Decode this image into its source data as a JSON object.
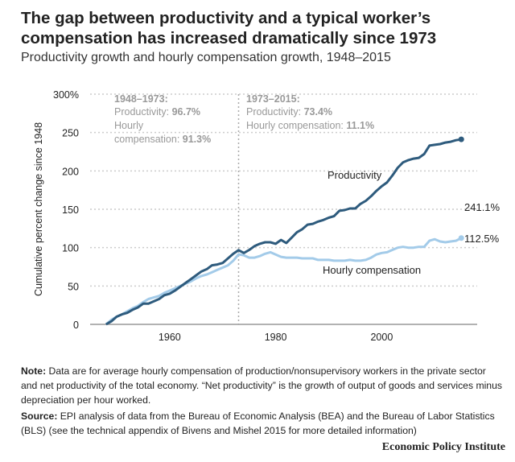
{
  "title": "The gap between productivity and a typical worker’s compensation has increased dramatically since 1973",
  "subtitle": "Productivity growth and hourly compensation growth, 1948–2015",
  "annotations": {
    "period1": {
      "heading": "1948–1973:",
      "prod_label": "Productivity: ",
      "prod_value": "96.7%",
      "comp_label1": "Hourly",
      "comp_label2": "compensation: ",
      "comp_value": "91.3%"
    },
    "period2": {
      "heading": "1973–2015:",
      "prod_label": "Productivity: ",
      "prod_value": "73.4%",
      "comp_label": "Hourly compensation: ",
      "comp_value": "11.1%"
    },
    "end_prod": "241.1%",
    "end_comp": "112.5%"
  },
  "note": {
    "label": "Note:",
    "text": " Data are for average hourly compensation of production/nonsupervisory workers in the private sector and net productivity of the total economy. “Net productivity” is the growth of output of goods and services minus depreciation per hour worked."
  },
  "source": {
    "label": "Source:",
    "text": " EPI analysis of data from the Bureau of Economic Analysis (BEA) and the Bureau of Labor Statistics (BLS) (see the technical appendix of Bivens and Mishel 2015 for more detailed information)"
  },
  "brand": "Economic Policy Institute",
  "colors": {
    "productivity": "#2e5b7d",
    "compensation": "#a3cbe9",
    "annotation": "#999999"
  },
  "chart_data": {
    "type": "line",
    "ylabel": "Cumulative percent change since 1948",
    "ylim": [
      0,
      300
    ],
    "xlim": [
      1945,
      2018
    ],
    "yticks": [
      "0",
      "50",
      "100",
      "150",
      "200",
      "250",
      "300%"
    ],
    "xticks": [
      "1960",
      "1980",
      "2000"
    ],
    "grid": true,
    "reference_line_x": 1973,
    "x": [
      1948,
      1949,
      1950,
      1951,
      1952,
      1953,
      1954,
      1955,
      1956,
      1957,
      1958,
      1959,
      1960,
      1961,
      1962,
      1963,
      1964,
      1965,
      1966,
      1967,
      1968,
      1969,
      1970,
      1971,
      1972,
      1973,
      1974,
      1975,
      1976,
      1977,
      1978,
      1979,
      1980,
      1981,
      1982,
      1983,
      1984,
      1985,
      1986,
      1987,
      1988,
      1989,
      1990,
      1991,
      1992,
      1993,
      1994,
      1995,
      1996,
      1997,
      1998,
      1999,
      2000,
      2001,
      2002,
      2003,
      2004,
      2005,
      2006,
      2007,
      2008,
      2009,
      2010,
      2011,
      2012,
      2013,
      2014,
      2015
    ],
    "series": [
      {
        "name": "Productivity",
        "values": [
          0,
          4,
          10,
          13,
          15,
          19,
          22,
          27,
          27,
          30,
          33,
          38,
          40,
          44,
          49,
          54,
          59,
          64,
          69,
          72,
          77,
          78,
          80,
          86,
          92,
          96.7,
          93,
          97,
          102,
          105,
          107,
          107,
          105,
          110,
          106,
          113,
          120,
          124,
          130,
          131,
          134,
          136,
          139,
          141,
          148,
          149,
          151,
          151,
          157,
          161,
          167,
          174,
          180,
          185,
          194,
          204,
          211,
          214,
          216,
          217,
          222,
          233,
          234,
          235,
          237,
          238,
          240,
          241.1
        ]
      },
      {
        "name": "Hourly compensation",
        "values": [
          0,
          6,
          10,
          13,
          17,
          21,
          24,
          29,
          33,
          35,
          37,
          41,
          44,
          47,
          50,
          53,
          56,
          60,
          63,
          65,
          68,
          71,
          74,
          77,
          83,
          91.3,
          90,
          87,
          87,
          89,
          92,
          94,
          91,
          88,
          87,
          87,
          87,
          86,
          86,
          86,
          84,
          84,
          84,
          83,
          83,
          83,
          84,
          83,
          83,
          84,
          87,
          91,
          93,
          94,
          97,
          100,
          101,
          100,
          100,
          101,
          101,
          109,
          111,
          108,
          107,
          108,
          109,
          112.5
        ]
      }
    ]
  }
}
